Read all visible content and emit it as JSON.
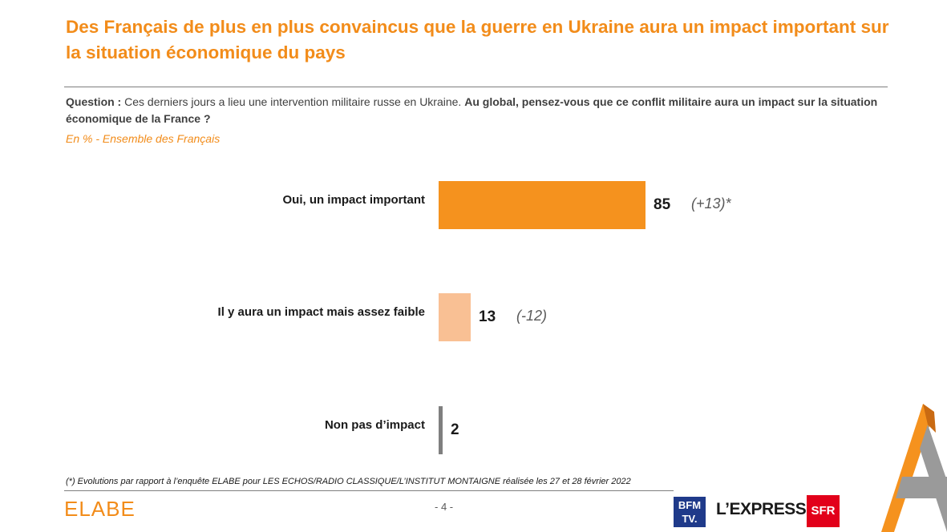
{
  "header": {
    "title": "Des Français de plus en plus convaincus que la guerre en Ukraine aura un impact important sur la situation économique du pays",
    "question_prefix": "Question :",
    "question_intro": " Ces derniers jours a lieu une intervention militaire russe en Ukraine. ",
    "question_main": "Au global, pensez-vous que ce conflit militaire aura un impact sur la situation économique de la France ?",
    "subtitle": "En % - Ensemble des Français"
  },
  "chart_data": {
    "type": "bar",
    "orientation": "horizontal",
    "categories": [
      "Oui, un impact important",
      "Il y aura un impact mais assez faible",
      "Non pas d’impact"
    ],
    "values": [
      85,
      13,
      2
    ],
    "value_labels": [
      "85",
      "13",
      "2"
    ],
    "evolutions": [
      "(+13)*",
      "(-12)",
      ""
    ],
    "colors": [
      "#f5921e",
      "#f9c094",
      "#7f7f7f"
    ],
    "xlim": [
      0,
      100
    ]
  },
  "footer": {
    "footnote": "(*) Evolutions par rapport à l’enquête ELABE pour LES ECHOS/RADIO CLASSIQUE/L’INSTITUT MONTAIGNE réalisée les 27 et 28 février 2022",
    "brand": "ELABE",
    "page": "- 4 -",
    "partners": {
      "bfm_line1": "BFM",
      "bfm_line2": "TV.",
      "express": "L’EXPRESS",
      "sfr": "SFR"
    }
  }
}
